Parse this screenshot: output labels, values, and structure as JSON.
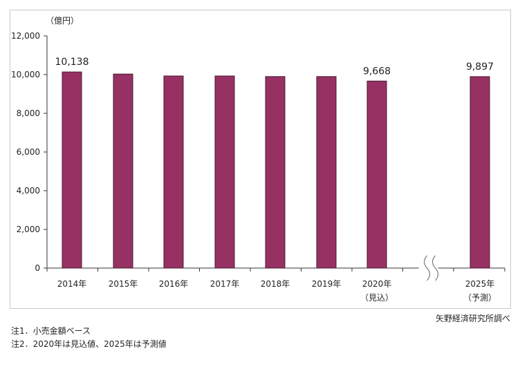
{
  "chart_data": {
    "type": "bar",
    "unit_label": "（億円）",
    "categories": [
      "2014年",
      "2015年",
      "2016年",
      "2017年",
      "2018年",
      "2019年",
      "2020年",
      "2025年"
    ],
    "category_sublabels": [
      "",
      "",
      "",
      "",
      "",
      "",
      "（見込）",
      "（予測）"
    ],
    "values": [
      10138,
      10030,
      9930,
      9930,
      9900,
      9900,
      9668,
      9897
    ],
    "data_labels": [
      "10,138",
      "",
      "",
      "",
      "",
      "",
      "9,668",
      "9,897"
    ],
    "ylim": [
      0,
      12000
    ],
    "yticks": [
      0,
      2000,
      4000,
      6000,
      8000,
      10000,
      12000
    ],
    "ytick_labels": [
      "0",
      "2,000",
      "4,000",
      "6,000",
      "8,000",
      "10,000",
      "12,000"
    ],
    "axis_break_between": [
      "2020年",
      "2025年"
    ],
    "bar_color": "#973163",
    "bar_border_color": "#4a1a30",
    "grid": false,
    "legend": "none"
  },
  "notes": {
    "source": "矢野経済研究所調べ",
    "note1": "注1．小売金額ベース",
    "note2": "注2．2020年は見込値、2025年は予測値"
  }
}
